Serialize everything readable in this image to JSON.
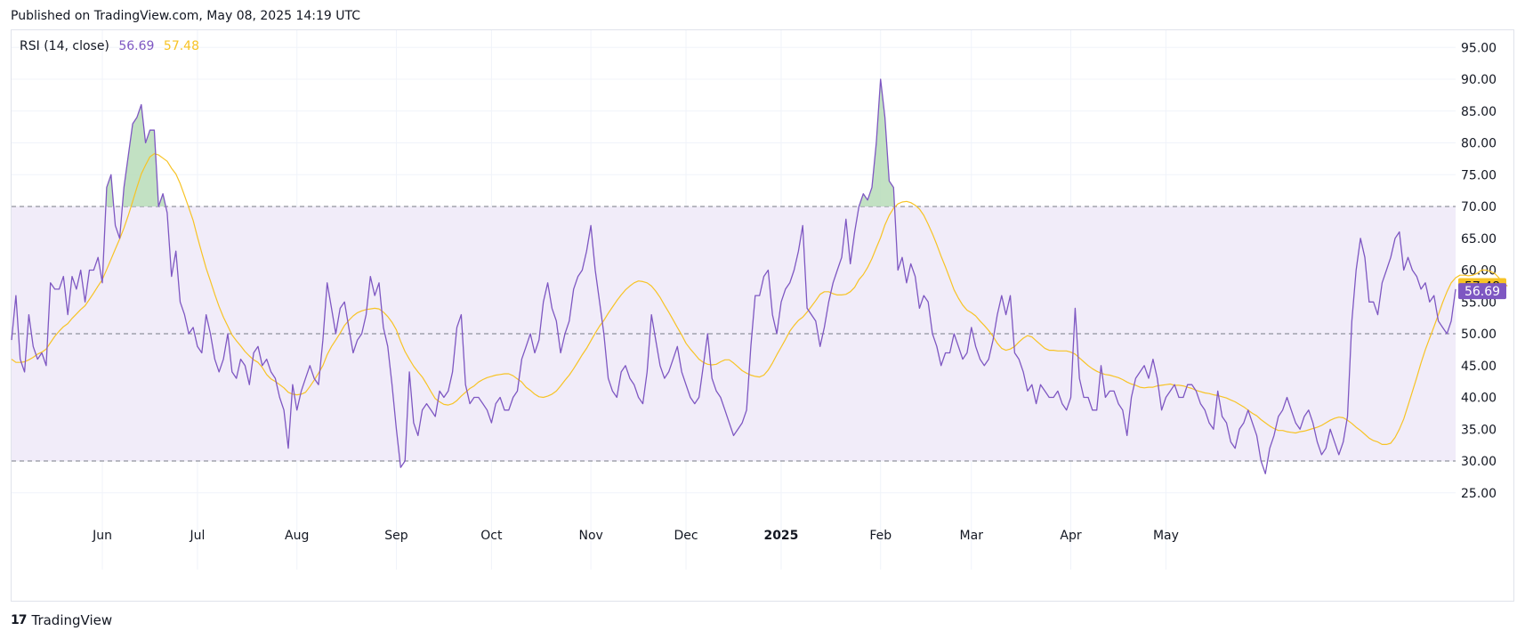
{
  "header": {
    "published": "Published on TradingView.com, May 08, 2025 14:19 UTC"
  },
  "legend": {
    "name": "RSI (14, close)",
    "rsi_value": "56.69",
    "ma_value": "57.48"
  },
  "footer": {
    "brand": "TradingView"
  },
  "colors": {
    "rsi": "#7e57c2",
    "ma": "#f7c325",
    "band_fill": "#f1ecf9",
    "overbought_fill": "#b7dcb9",
    "grid": "#f0f3fa",
    "text": "#131722"
  },
  "chart_data": {
    "type": "line",
    "title": "RSI (14, close)",
    "y_ticks": [
      "95.00",
      "90.00",
      "85.00",
      "80.00",
      "75.00",
      "70.00",
      "65.00",
      "60.00",
      "55.00",
      "50.00",
      "45.00",
      "40.00",
      "35.00",
      "30.00",
      "25.00"
    ],
    "x_labels": [
      {
        "label": "Jun",
        "i": 21,
        "bold": false
      },
      {
        "label": "Jul",
        "i": 43,
        "bold": false
      },
      {
        "label": "Aug",
        "i": 66,
        "bold": false
      },
      {
        "label": "Sep",
        "i": 89,
        "bold": false
      },
      {
        "label": "Oct",
        "i": 111,
        "bold": false
      },
      {
        "label": "Nov",
        "i": 134,
        "bold": false
      },
      {
        "label": "Dec",
        "i": 156,
        "bold": false
      },
      {
        "label": "2025",
        "i": 178,
        "bold": true
      },
      {
        "label": "Feb",
        "i": 201,
        "bold": false
      },
      {
        "label": "Mar",
        "i": 222,
        "bold": false
      },
      {
        "label": "Apr",
        "i": 245,
        "bold": false
      },
      {
        "label": "May",
        "i": 267,
        "bold": false
      }
    ],
    "ylim": [
      20,
      97
    ],
    "levels": {
      "upper": 70,
      "middle": 50,
      "lower": 30
    },
    "overbought_threshold": 70,
    "series": [
      {
        "name": "RSI",
        "values": [
          49,
          56,
          46,
          44,
          53,
          48,
          46,
          47,
          45,
          58,
          57,
          57,
          59,
          53,
          59,
          57,
          60,
          55,
          60,
          60,
          62,
          58,
          73,
          75,
          67,
          65,
          73,
          78,
          83,
          84,
          86,
          80,
          82,
          82,
          70,
          72,
          69,
          59,
          63,
          55,
          53,
          50,
          51,
          48,
          47,
          53,
          50,
          46,
          44,
          46,
          50,
          44,
          43,
          46,
          45,
          42,
          47,
          48,
          45,
          46,
          44,
          43,
          40,
          38,
          32,
          42,
          38,
          41,
          43,
          45,
          43,
          42,
          49,
          58,
          54,
          50,
          54,
          55,
          51,
          47,
          49,
          50,
          53,
          59,
          56,
          58,
          51,
          48,
          42,
          35,
          29,
          30,
          44,
          36,
          34,
          38,
          39,
          38,
          37,
          41,
          40,
          41,
          44,
          51,
          53,
          42,
          39,
          40,
          40,
          39,
          38,
          36,
          39,
          40,
          38,
          38,
          40,
          41,
          46,
          48,
          50,
          47,
          49,
          55,
          58,
          54,
          52,
          47,
          50,
          52,
          57,
          59,
          60,
          63,
          67,
          60,
          55,
          50,
          43,
          41,
          40,
          44,
          45,
          43,
          42,
          40,
          39,
          44,
          53,
          49,
          45,
          43,
          44,
          46,
          48,
          44,
          42,
          40,
          39,
          40,
          45,
          50,
          43,
          41,
          40,
          38,
          36,
          34,
          35,
          36,
          38,
          48,
          56,
          56,
          59,
          60,
          53,
          50,
          55,
          57,
          58,
          60,
          63,
          67,
          54,
          53,
          52,
          48,
          51,
          55,
          58,
          60,
          62,
          68,
          61,
          66,
          70,
          72,
          71,
          73,
          80,
          90,
          84,
          74,
          73,
          60,
          62,
          58,
          61,
          59,
          54,
          56,
          55,
          50,
          48,
          45,
          47,
          47,
          50,
          48,
          46,
          47,
          51,
          48,
          46,
          45,
          46,
          49,
          53,
          56,
          53,
          56,
          47,
          46,
          44,
          41,
          42,
          39,
          42,
          41,
          40,
          40,
          41,
          39,
          38,
          40,
          54,
          43,
          40,
          40,
          38,
          38,
          45,
          40,
          41,
          41,
          39,
          38,
          34,
          40,
          43,
          44,
          45,
          43,
          46,
          43,
          38,
          40,
          41,
          42,
          40,
          40,
          42,
          42,
          41,
          39,
          38,
          36,
          35,
          41,
          37,
          36,
          33,
          32,
          35,
          36,
          38,
          36,
          34,
          30,
          28,
          32,
          34,
          37,
          38,
          40,
          38,
          36,
          35,
          37,
          38,
          36,
          33,
          31,
          32,
          35,
          33,
          31,
          33,
          37,
          52,
          60,
          65,
          62,
          55,
          55,
          53,
          58,
          60,
          62,
          65,
          66,
          60,
          62,
          60,
          59,
          57,
          58,
          55,
          56,
          52,
          51,
          50,
          52,
          57
        ],
        "color": "#7e57c2"
      },
      {
        "name": "MA",
        "values": [
          46,
          45.5,
          45.5,
          45.6,
          45.9,
          46.3,
          46.8,
          47.1,
          47.6,
          48.6,
          49.6,
          50.4,
          51.1,
          51.6,
          52.4,
          53.1,
          53.8,
          54.4,
          55.4,
          56.4,
          57.5,
          58.5,
          60.1,
          61.7,
          63.3,
          64.9,
          66.6,
          68.6,
          70.8,
          73,
          75.1,
          76.5,
          77.8,
          78.3,
          78.1,
          77.6,
          77.1,
          76,
          75.1,
          73.6,
          71.7,
          69.8,
          67.8,
          65.2,
          62.7,
          60.3,
          58.3,
          56.2,
          54.3,
          52.6,
          51.2,
          49.8,
          48.9,
          48.1,
          47.2,
          46.5,
          45.9,
          45.5,
          44.7,
          43.6,
          42.9,
          42.5,
          42,
          41.5,
          40.8,
          40.5,
          40.4,
          40.5,
          40.8,
          41.7,
          42.7,
          43.8,
          45,
          46.7,
          48,
          49,
          50.1,
          51.3,
          52.1,
          52.8,
          53.3,
          53.6,
          53.8,
          53.9,
          54,
          53.9,
          53.4,
          52.7,
          51.8,
          50.6,
          48.8,
          47.2,
          46,
          44.9,
          44,
          43.2,
          42.1,
          40.9,
          39.8,
          39.3,
          38.9,
          38.8,
          39,
          39.5,
          40.2,
          40.8,
          41.4,
          41.8,
          42.4,
          42.8,
          43.1,
          43.3,
          43.5,
          43.6,
          43.7,
          43.7,
          43.4,
          42.9,
          42.4,
          41.6,
          41.1,
          40.5,
          40.1,
          40,
          40.2,
          40.5,
          41,
          41.8,
          42.7,
          43.5,
          44.5,
          45.6,
          46.7,
          47.7,
          48.9,
          50.1,
          51.2,
          52.1,
          53.2,
          54.2,
          55.2,
          56.1,
          56.9,
          57.5,
          58,
          58.3,
          58.2,
          58,
          57.5,
          56.7,
          55.7,
          54.5,
          53.4,
          52.2,
          51,
          49.8,
          48.5,
          47.6,
          46.8,
          46,
          45.5,
          45.2,
          45.1,
          45.2,
          45.6,
          45.9,
          45.9,
          45.4,
          44.8,
          44.2,
          43.8,
          43.5,
          43.3,
          43.2,
          43.5,
          44.3,
          45.4,
          46.7,
          47.9,
          49.1,
          50.4,
          51.3,
          52.1,
          52.6,
          53.4,
          54.3,
          55.2,
          56.2,
          56.6,
          56.6,
          56.3,
          56.1,
          56.1,
          56.2,
          56.6,
          57.3,
          58.5,
          59.3,
          60.4,
          61.8,
          63.5,
          65.1,
          67.1,
          68.6,
          69.7,
          70.4,
          70.7,
          70.8,
          70.6,
          70.2,
          69.6,
          68.6,
          67.2,
          65.7,
          64,
          62.2,
          60.5,
          58.7,
          56.9,
          55.6,
          54.5,
          53.7,
          53.3,
          52.8,
          52,
          51.3,
          50.5,
          49.6,
          48.5,
          47.7,
          47.4,
          47.6,
          48,
          48.7,
          49.3,
          49.7,
          49.5,
          48.9,
          48.3,
          47.7,
          47.4,
          47.4,
          47.3,
          47.3,
          47.3,
          47.1,
          46.8,
          46.2,
          45.6,
          45,
          44.5,
          44.1,
          43.8,
          43.6,
          43.5,
          43.3,
          43.1,
          42.8,
          42.4,
          42.1,
          41.9,
          41.6,
          41.5,
          41.6,
          41.6,
          41.8,
          41.9,
          42,
          42.1,
          41.9,
          41.9,
          41.8,
          41.6,
          41.4,
          41.1,
          40.9,
          40.7,
          40.6,
          40.4,
          40.3,
          40.1,
          39.9,
          39.6,
          39.3,
          38.9,
          38.5,
          38,
          37.5,
          37.1,
          36.5,
          36,
          35.5,
          35.1,
          34.8,
          34.8,
          34.6,
          34.5,
          34.4,
          34.6,
          34.7,
          34.9,
          35.1,
          35.3,
          35.6,
          36,
          36.4,
          36.7,
          36.9,
          36.8,
          36.4,
          35.9,
          35.3,
          34.8,
          34.2,
          33.6,
          33.2,
          33,
          32.6,
          32.6,
          32.8,
          33.7,
          35,
          36.6,
          38.7,
          40.9,
          43.1,
          45.4,
          47.5,
          49.3,
          51.1,
          53,
          54.9,
          56.6,
          58,
          58.8,
          59.2,
          59.2,
          59.1,
          59.2,
          59.5,
          60,
          60,
          59.8,
          59.5,
          58.8,
          58,
          57.48
        ],
        "color": "#f7c325"
      }
    ],
    "last_values": {
      "rsi": "56.69",
      "ma": "57.48"
    }
  }
}
